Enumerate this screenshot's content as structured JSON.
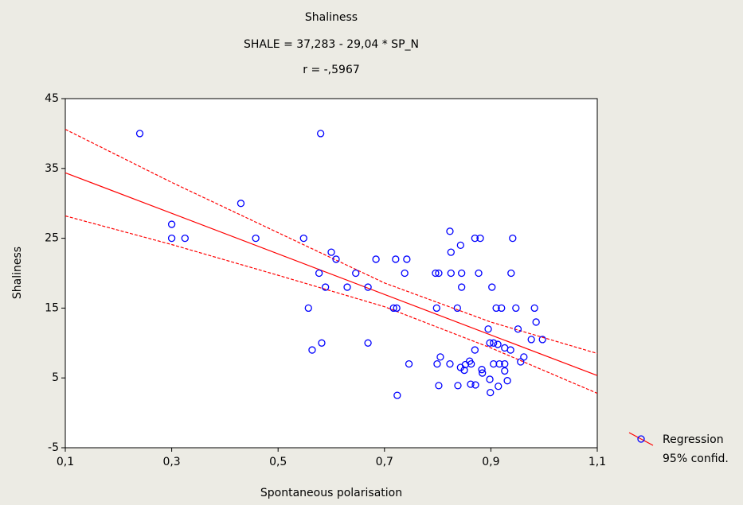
{
  "chart_data": {
    "type": "scatter",
    "title": "Shaliness",
    "subtitle": "SHALE = 37,283 - 29,04 * SP_N",
    "annotation": "r = -,5967",
    "x_label": "Spontaneous polarisation",
    "y_label": "Shaliness",
    "xlim": [
      0.1,
      1.1
    ],
    "ylim": [
      -5,
      45
    ],
    "xticks": [
      {
        "value": 0.1,
        "label": "0,1"
      },
      {
        "value": 0.3,
        "label": "0,3"
      },
      {
        "value": 0.5,
        "label": "0,5"
      },
      {
        "value": 0.7,
        "label": "0,7"
      },
      {
        "value": 0.9,
        "label": "0,9"
      },
      {
        "value": 1.1,
        "label": "1,1"
      }
    ],
    "yticks": [
      -5,
      5,
      15,
      25,
      35,
      45
    ],
    "color": "#0000ff",
    "x": [
      0.24,
      0.58,
      0.43,
      0.3,
      0.3,
      0.325,
      0.458,
      0.548,
      0.823,
      0.87,
      0.88,
      0.941,
      0.843,
      0.825,
      0.6,
      0.609,
      0.684,
      0.721,
      0.742,
      0.577,
      0.646,
      0.738,
      0.796,
      0.802,
      0.825,
      0.845,
      0.877,
      0.938,
      0.589,
      0.63,
      0.669,
      0.845,
      0.902,
      0.557,
      0.717,
      0.723,
      0.798,
      0.837,
      0.91,
      0.92,
      0.947,
      0.982,
      0.985,
      0.951,
      0.895,
      0.976,
      0.997,
      0.582,
      0.669,
      0.898,
      0.905,
      0.913,
      0.564,
      0.87,
      0.926,
      0.937,
      0.962,
      0.805,
      0.956,
      0.746,
      0.799,
      0.823,
      0.86,
      0.863,
      0.905,
      0.916,
      0.926,
      0.843,
      0.852,
      0.85,
      0.883,
      0.884,
      0.926,
      0.898,
      0.931,
      0.862,
      0.871,
      0.802,
      0.838,
      0.914,
      0.899,
      0.724
    ],
    "values": [
      40,
      40,
      30,
      27,
      25,
      25,
      25,
      25,
      26,
      25,
      25,
      25,
      24,
      23,
      23,
      22,
      22,
      22,
      22,
      20,
      20,
      20,
      20,
      20,
      20,
      20,
      20,
      20,
      18,
      18,
      18,
      18,
      18,
      15,
      15,
      15,
      15,
      15,
      15,
      15,
      15,
      15,
      13,
      12,
      12,
      10.5,
      10.5,
      10,
      10,
      10,
      10,
      9.8,
      9,
      9,
      9.3,
      9,
      8,
      8,
      7.3,
      7,
      7,
      7,
      7.4,
      7,
      7,
      7,
      7,
      6.5,
      6.9,
      6.1,
      6.2,
      5.7,
      6,
      4.8,
      4.6,
      4.1,
      4,
      3.9,
      3.9,
      3.8,
      2.9,
      2.5
    ],
    "regression": {
      "name": "Regression",
      "color": "#ff0000",
      "x": [
        0.1,
        1.1
      ],
      "values": [
        34.379,
        5.339
      ]
    },
    "confidence": {
      "name": "95% confid.",
      "color": "#ff0000",
      "x": [
        0.1,
        0.3,
        0.5,
        0.7,
        0.9,
        1.1
      ],
      "upper": [
        40.6,
        33.0,
        25.8,
        18.6,
        13.0,
        8.5
      ],
      "lower": [
        28.2,
        24.1,
        19.7,
        15.2,
        9.3,
        2.8
      ]
    }
  }
}
